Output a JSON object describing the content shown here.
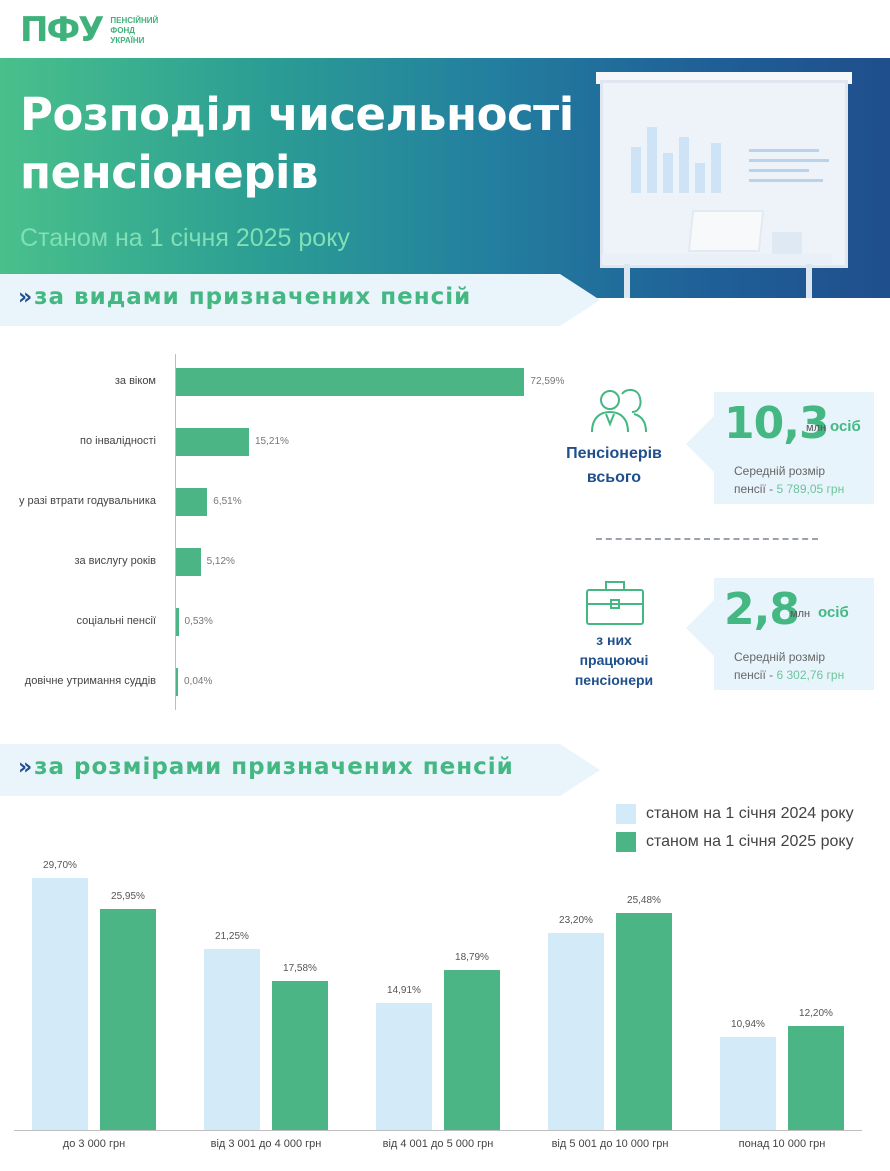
{
  "brand": {
    "logo": "ПФУ",
    "org_lines": [
      "ПЕНСІЙНИЙ",
      "ФОНД",
      "УКРАЇНИ"
    ]
  },
  "header": {
    "title_line1": "Розподіл чисельності",
    "title_line2": "пенсіонерів",
    "subtitle": "Станом на 1 січня 2025 року"
  },
  "sections": {
    "by_type": "за видами призначених пенсій",
    "by_size": "за розмірами призначених пенсій"
  },
  "colors": {
    "green": "#4cb585",
    "light_blue": "#d3ebf9",
    "navy": "#1f4f8c"
  },
  "stats": {
    "total": {
      "value": "10,3",
      "unit": "млн",
      "unit2": "осіб",
      "label_line1": "Пенсіонерів",
      "label_line2": "всього",
      "avg_line1": "Середній розмір",
      "avg_prefix": "пенсії - ",
      "avg_value": "5 789,05 грн",
      "icon": "people-icon"
    },
    "working": {
      "value": "2,8",
      "unit": "млн",
      "unit2": "осіб",
      "label_line1": "з них",
      "label_line2": "працюючі",
      "label_line3": "пенсіонери",
      "avg_line1": "Середній розмір",
      "avg_prefix": "пенсії - ",
      "avg_value": "6 302,76 грн",
      "icon": "briefcase-icon"
    }
  },
  "chart_data": [
    {
      "type": "bar",
      "orientation": "horizontal",
      "categories": [
        "за віком",
        "по інвалідності",
        "у разі втрати годувальника",
        "за вислугу років",
        "соціальні пенсії",
        "довічне утримання суддів"
      ],
      "values": [
        72.59,
        15.21,
        6.51,
        5.12,
        0.53,
        0.04
      ],
      "value_labels": [
        "72,59%",
        "15,21%",
        "6,51%",
        "5,12%",
        "0,53%",
        "0,04%"
      ],
      "xlim": [
        0,
        100
      ]
    },
    {
      "type": "bar",
      "orientation": "vertical",
      "categories": [
        "до 3 000 грн",
        "від 3 001 до 4 000 грн",
        "від 4 001 до 5 000 грн",
        "від 5 001 до 10 000 грн",
        "понад 10 000 грн"
      ],
      "series": [
        {
          "name": "станом на 1 січня 2024 року",
          "values": [
            29.7,
            21.25,
            14.91,
            23.2,
            10.94
          ],
          "labels": [
            "29,70%",
            "21,25%",
            "14,91%",
            "23,20%",
            "10,94%"
          ],
          "color": "#d3ebf9"
        },
        {
          "name": "станом на 1 січня 2025 року",
          "values": [
            25.95,
            17.58,
            18.79,
            25.48,
            12.2
          ],
          "labels": [
            "25,95%",
            "17,58%",
            "18,79%",
            "25,48%",
            "12,20%"
          ],
          "color": "#4cb585"
        }
      ],
      "ylim": [
        0,
        30
      ],
      "legend": "top-right"
    }
  ]
}
